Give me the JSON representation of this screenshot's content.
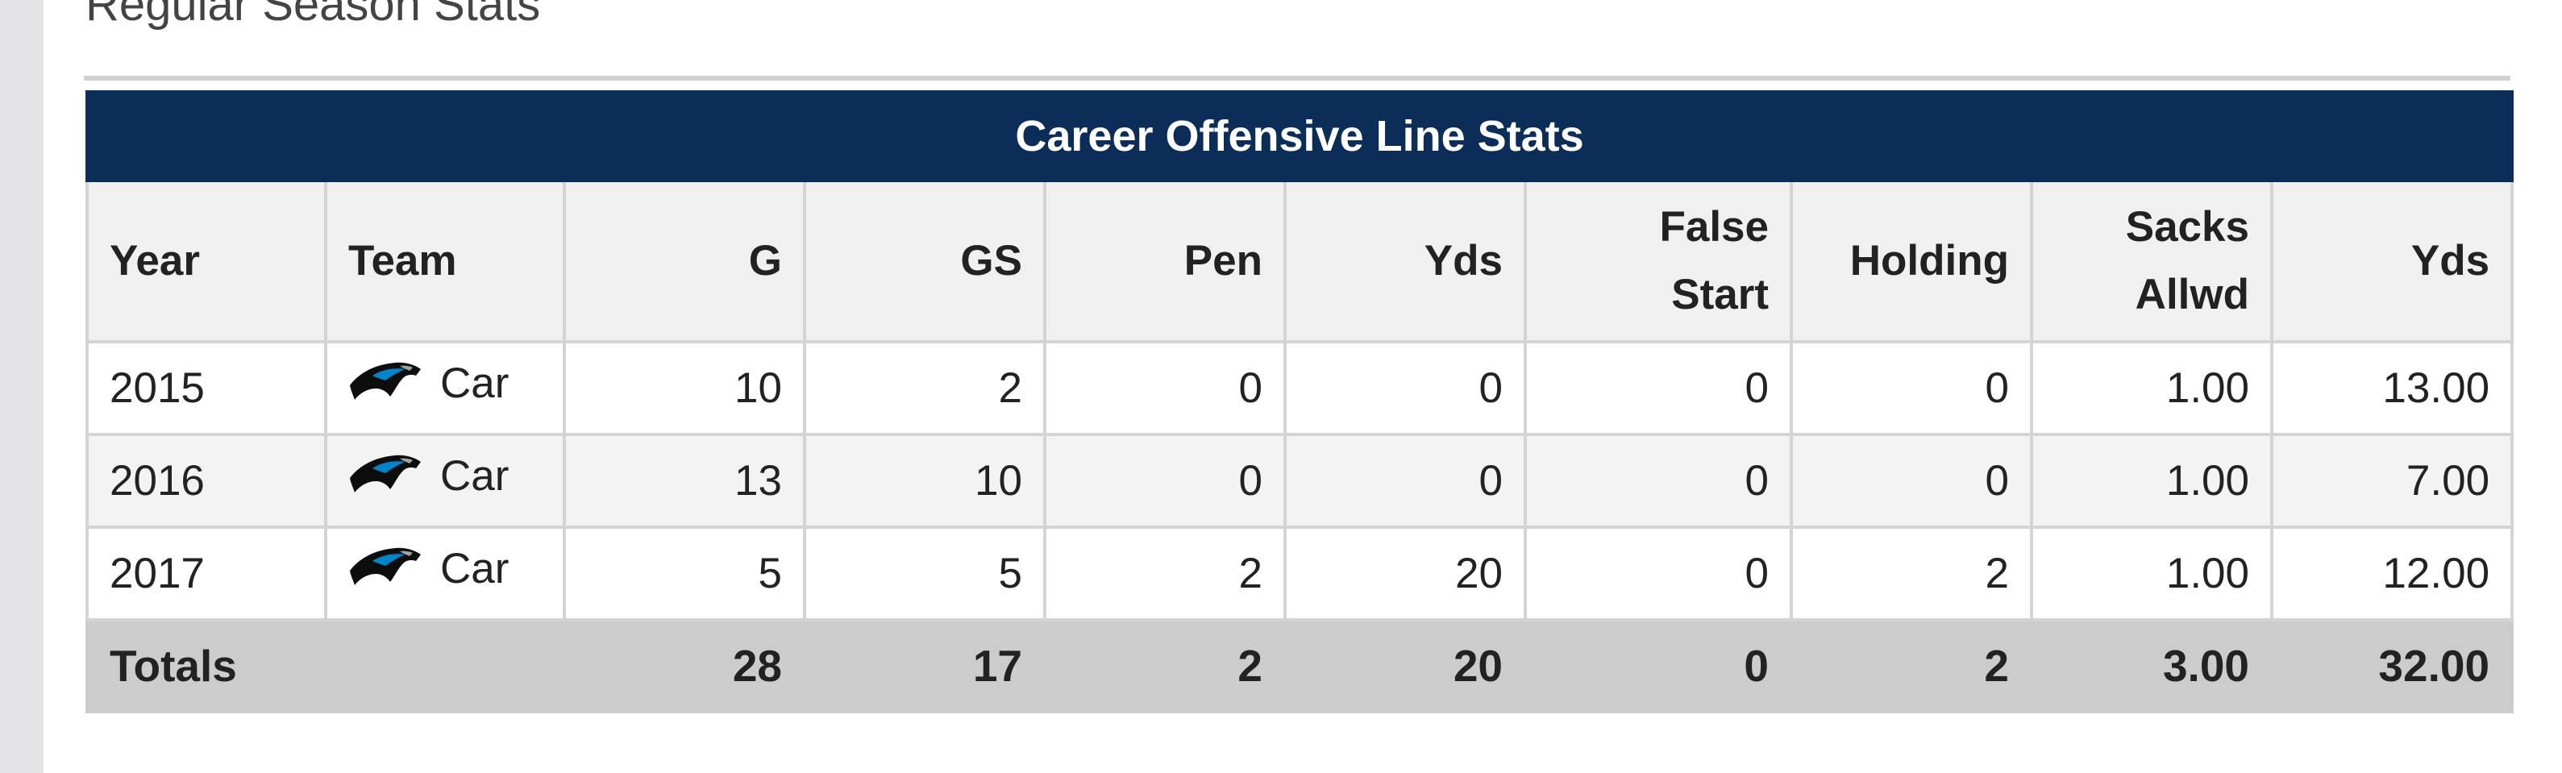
{
  "section": {
    "title": "Regular Season Stats"
  },
  "table": {
    "caption": "Career Offensive Line Stats",
    "columns": [
      "Year",
      "Team",
      "G",
      "GS",
      "Pen",
      "Yds",
      "False",
      "Start",
      "Holding",
      "Sacks",
      "Allwd",
      "Yds"
    ],
    "column_headers": {
      "year": "Year",
      "team": "Team",
      "g": "G",
      "gs": "GS",
      "pen": "Pen",
      "yds": "Yds",
      "false_start_line1": "False",
      "false_start_line2": "Start",
      "holding": "Holding",
      "sacks_line1": "Sacks",
      "sacks_line2": "Allwd",
      "sack_yds": "Yds"
    },
    "rows": [
      {
        "year": "2015",
        "team": "Car",
        "logo": "panther-logo-icon",
        "g": "10",
        "gs": "2",
        "pen": "0",
        "yds": "0",
        "false_start": "0",
        "holding": "0",
        "sacks": "1.00",
        "sack_yds": "13.00"
      },
      {
        "year": "2016",
        "team": "Car",
        "logo": "panther-logo-icon",
        "g": "13",
        "gs": "10",
        "pen": "0",
        "yds": "0",
        "false_start": "0",
        "holding": "0",
        "sacks": "1.00",
        "sack_yds": "7.00"
      },
      {
        "year": "2017",
        "team": "Car",
        "logo": "panther-logo-icon",
        "g": "5",
        "gs": "5",
        "pen": "2",
        "yds": "20",
        "false_start": "0",
        "holding": "2",
        "sacks": "1.00",
        "sack_yds": "12.00"
      }
    ],
    "totals": {
      "label": "Totals",
      "g": "28",
      "gs": "17",
      "pen": "2",
      "yds": "20",
      "false_start": "0",
      "holding": "2",
      "sacks": "3.00",
      "sack_yds": "32.00"
    }
  },
  "colors": {
    "caption_bg": "#0b2d58",
    "header_bg": "#f0f0f0",
    "totals_bg": "#cccccc",
    "border": "#d4d4d4",
    "logo_blue": "#0085ca"
  }
}
